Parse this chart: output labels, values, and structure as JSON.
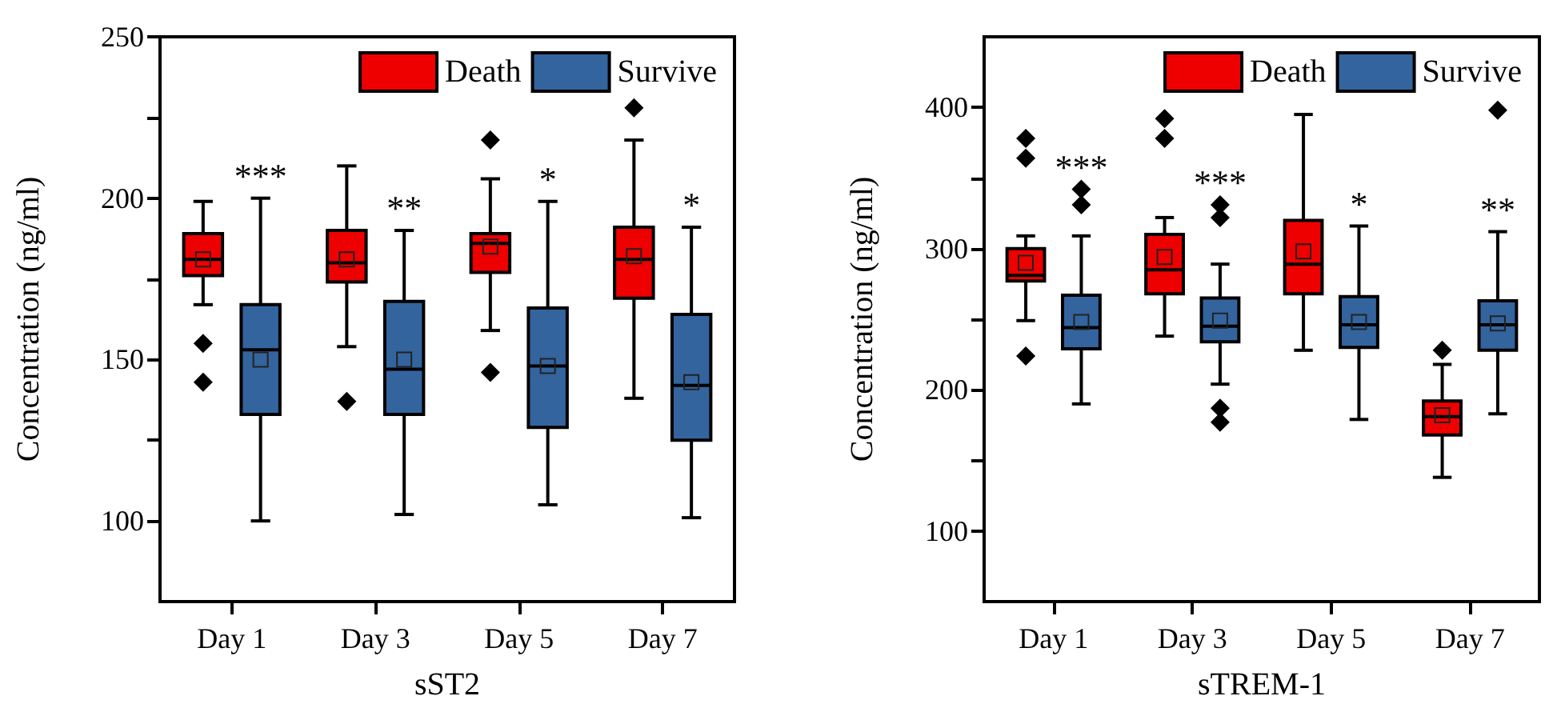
{
  "chart_data": [
    {
      "type": "box",
      "xlabel": "sST2",
      "ylabel": "Concentration (ng/ml)",
      "categories": [
        "Day 1",
        "Day 3",
        "Day 5",
        "Day 7"
      ],
      "series": [
        {
          "name": "Death",
          "color": "#ee0000",
          "boxes": [
            {
              "low": 167,
              "q1": 176,
              "median": 181,
              "q3": 189,
              "high": 199,
              "mean": 181,
              "outliers": [
                155,
                143
              ]
            },
            {
              "low": 154,
              "q1": 174,
              "median": 180,
              "q3": 190,
              "high": 210,
              "mean": 181,
              "outliers": [
                137
              ]
            },
            {
              "low": 159,
              "q1": 177,
              "median": 186,
              "q3": 189,
              "high": 206,
              "mean": 185,
              "outliers": [
                218,
                146
              ]
            },
            {
              "low": 138,
              "q1": 169,
              "median": 181,
              "q3": 191,
              "high": 218,
              "mean": 182,
              "outliers": [
                228
              ]
            }
          ]
        },
        {
          "name": "Survive",
          "color": "#33649e",
          "boxes": [
            {
              "low": 100,
              "q1": 133,
              "median": 153,
              "q3": 167,
              "high": 200,
              "mean": 150
            },
            {
              "low": 102,
              "q1": 133,
              "median": 147,
              "q3": 168,
              "high": 190,
              "mean": 150
            },
            {
              "low": 105,
              "q1": 129,
              "median": 148,
              "q3": 166,
              "high": 199,
              "mean": 148
            },
            {
              "low": 101,
              "q1": 125,
              "median": 142,
              "q3": 164,
              "high": 191,
              "mean": 143
            }
          ]
        }
      ],
      "ylim": [
        75,
        250
      ],
      "yticks": [
        100,
        {
          "value": 125,
          "label": null
        },
        150,
        {
          "value": 175,
          "label": null
        },
        200,
        {
          "value": 225,
          "label": null
        },
        250
      ],
      "legend": "top right",
      "marker": "diamond",
      "grid": false,
      "annotations": [
        "***",
        "**",
        "*",
        "*"
      ]
    },
    {
      "type": "box",
      "xlabel": "sTREM-1",
      "ylabel": "Concentration (ng/ml)",
      "categories": [
        "Day 1",
        "Day 3",
        "Day 5",
        "Day 7"
      ],
      "series": [
        {
          "name": "Death",
          "color": "#ee0000",
          "boxes": [
            {
              "low": 249,
              "q1": 277,
              "median": 281,
              "q3": 300,
              "high": 309,
              "mean": 290,
              "outliers": [
                378,
                364,
                224
              ]
            },
            {
              "low": 238,
              "q1": 268,
              "median": 285,
              "q3": 310,
              "high": 322,
              "mean": 294,
              "outliers": [
                392,
                378
              ]
            },
            {
              "low": 228,
              "q1": 268,
              "median": 289,
              "q3": 320,
              "high": 395,
              "mean": 298
            },
            {
              "low": 138,
              "q1": 168,
              "median": 181,
              "q3": 192,
              "high": 218,
              "mean": 182,
              "outliers": [
                228
              ]
            }
          ]
        },
        {
          "name": "Survive",
          "color": "#33649e",
          "boxes": [
            {
              "low": 190,
              "q1": 229,
              "median": 244,
              "q3": 267,
              "high": 309,
              "mean": 248,
              "outliers": [
                342,
                331
              ]
            },
            {
              "low": 204,
              "q1": 234,
              "median": 245,
              "q3": 265,
              "high": 289,
              "mean": 249,
              "outliers": [
                331,
                322,
                187,
                177
              ]
            },
            {
              "low": 179,
              "q1": 230,
              "median": 246,
              "q3": 266,
              "high": 316,
              "mean": 248
            },
            {
              "low": 183,
              "q1": 228,
              "median": 246,
              "q3": 263,
              "high": 312,
              "mean": 247,
              "outliers": [
                398
              ]
            }
          ]
        }
      ],
      "ylim": [
        50,
        450
      ],
      "yticks": [
        100,
        {
          "value": 150,
          "label": null
        },
        200,
        {
          "value": 250,
          "label": null
        },
        300,
        {
          "value": 350,
          "label": null
        },
        400
      ],
      "legend": "top right",
      "marker": "diamond",
      "grid": false,
      "annotations": [
        "***",
        "***",
        "*",
        "**"
      ]
    }
  ]
}
